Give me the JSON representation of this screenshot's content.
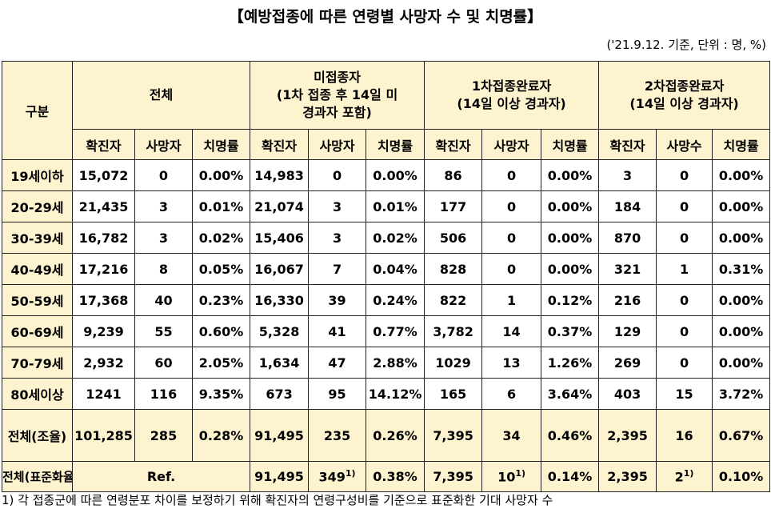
{
  "title": "【예방접종에 따른 연령별 사망자 수 및 치명률】",
  "subtitle": "('21.9.12. 기준, 단위 : 명, %)",
  "table": {
    "corner": "구분",
    "groups": [
      "전체",
      "미접종자\n(1차 접종 후 14일 미\n경과자 포함)",
      "1차접종완료자\n(14일 이상 경과자)",
      "2차접종완료자\n(14일 이상 경과자)"
    ],
    "subheaders": [
      [
        "확진자",
        "사망자",
        "치명률"
      ],
      [
        "확진자",
        "사망자",
        "치명률"
      ],
      [
        "확진자",
        "사망자",
        "치명률"
      ],
      [
        "확진자",
        "사망수",
        "치명률"
      ]
    ],
    "rows": [
      [
        "19세이하",
        "15,072",
        "0",
        "0.00%",
        "14,983",
        "0",
        "0.00%",
        "86",
        "0",
        "0.00%",
        "3",
        "0",
        "0.00%"
      ],
      [
        "20-29세",
        "21,435",
        "3",
        "0.01%",
        "21,074",
        "3",
        "0.01%",
        "177",
        "0",
        "0.00%",
        "184",
        "0",
        "0.00%"
      ],
      [
        "30-39세",
        "16,782",
        "3",
        "0.02%",
        "15,406",
        "3",
        "0.02%",
        "506",
        "0",
        "0.00%",
        "870",
        "0",
        "0.00%"
      ],
      [
        "40-49세",
        "17,216",
        "8",
        "0.05%",
        "16,067",
        "7",
        "0.04%",
        "828",
        "0",
        "0.00%",
        "321",
        "1",
        "0.31%"
      ],
      [
        "50-59세",
        "17,368",
        "40",
        "0.23%",
        "16,330",
        "39",
        "0.24%",
        "822",
        "1",
        "0.12%",
        "216",
        "0",
        "0.00%"
      ],
      [
        "60-69세",
        "9,239",
        "55",
        "0.60%",
        "5,328",
        "41",
        "0.77%",
        "3,782",
        "14",
        "0.37%",
        "129",
        "0",
        "0.00%"
      ],
      [
        "70-79세",
        "2,932",
        "60",
        "2.05%",
        "1,634",
        "47",
        "2.88%",
        "1029",
        "13",
        "1.26%",
        "269",
        "0",
        "0.00%"
      ],
      [
        "80세이상",
        "1241",
        "116",
        "9.35%",
        "673",
        "95",
        "14.12%",
        "165",
        "6",
        "3.64%",
        "403",
        "15",
        "3.72%"
      ],
      [
        "전체(조율)",
        "101,285",
        "285",
        "0.28%",
        "91,495",
        "235",
        "0.26%",
        "7,395",
        "34",
        "0.46%",
        "2,395",
        "16",
        "0.67%"
      ]
    ],
    "standardized": {
      "label": "전체(표준화율)",
      "ref": "Ref.",
      "cells": [
        {
          "text": "91,495"
        },
        {
          "text": "349",
          "note": "1)"
        },
        {
          "text": "0.38%"
        },
        {
          "text": "7,395"
        },
        {
          "text": "10",
          "note": "1)"
        },
        {
          "text": "0.14%"
        },
        {
          "text": "2,395"
        },
        {
          "text": "2",
          "note": "1)"
        },
        {
          "text": "0.10%"
        }
      ]
    }
  },
  "footnote": "1) 각 접종군에 따른 연령분포 차이를 보정하기 위해 확진자의 연령구성비를 기준으로 표준화한 기대 사망자 수"
}
